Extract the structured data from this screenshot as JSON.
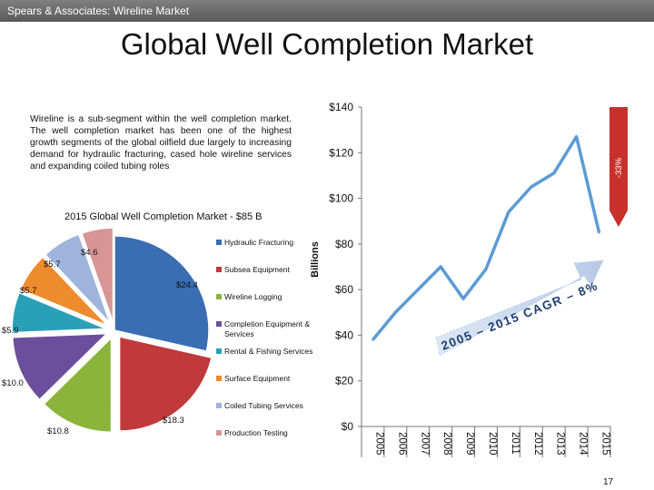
{
  "header": {
    "title": "Spears & Associates:  Wireline Market"
  },
  "slide": {
    "title": "Global Well Completion Market",
    "description": "Wireline is a sub-segment within the well completion market. The well completion market has been one of the highest growth segments of the global oilfield due largely to increasing demand for hydraulic fracturing, cased hole wireline services and expanding coiled tubing roles",
    "page_number": "17"
  },
  "colors": {
    "line": "#5b9bd5",
    "decline_arrow": "#c9302c",
    "cagr_arrow_text": "#1f3e6e"
  },
  "chart_data": [
    {
      "type": "pie",
      "title": "2015 Global Well Completion Market - $85 B",
      "slices": [
        {
          "label": "Hydraulic Fracturing",
          "value": 24.4,
          "value_label": "$24.4",
          "color": "#3a6db2"
        },
        {
          "label": "Subsea Equipment",
          "value": 18.3,
          "value_label": "$18.3",
          "color": "#c0393b"
        },
        {
          "label": "Wireline Logging",
          "value": 10.8,
          "value_label": "$10.8",
          "color": "#8bb43a"
        },
        {
          "label": "Completion Equipment & Services",
          "value": 10.0,
          "value_label": "$10.0",
          "color": "#6b4f9c"
        },
        {
          "label": "Rental & Fishing Services",
          "value": 5.9,
          "value_label": "$5.9",
          "color": "#2aa0b8"
        },
        {
          "label": "Surface Equipment",
          "value": 5.7,
          "value_label": "$5.7",
          "color": "#ee8b2c"
        },
        {
          "label": "Coiled Tubing Services",
          "value": 5.7,
          "value_label": "$5.7",
          "color": "#9fb4dc"
        },
        {
          "label": "Production Testing",
          "value": 4.6,
          "value_label": "$4.6",
          "color": "#d89595"
        }
      ]
    },
    {
      "type": "line",
      "ylabel": "Billions",
      "categories": [
        "2005",
        "2006",
        "2007",
        "2008",
        "2009",
        "2010",
        "2011",
        "2012",
        "2013",
        "2014",
        "2015"
      ],
      "series": [
        {
          "values": [
            38,
            50,
            60,
            70,
            56,
            69,
            94,
            105,
            111,
            127,
            85
          ]
        }
      ],
      "ylim": [
        0,
        140
      ],
      "yticks": [
        0,
        20,
        40,
        60,
        80,
        100,
        120,
        140
      ],
      "ytick_labels": [
        "$0",
        "$20",
        "$40",
        "$60",
        "$80",
        "$100",
        "$120",
        "$140"
      ],
      "annotations": {
        "cagr": "2005 – 2015 CAGR – 8%",
        "decline": "-33%"
      }
    }
  ]
}
